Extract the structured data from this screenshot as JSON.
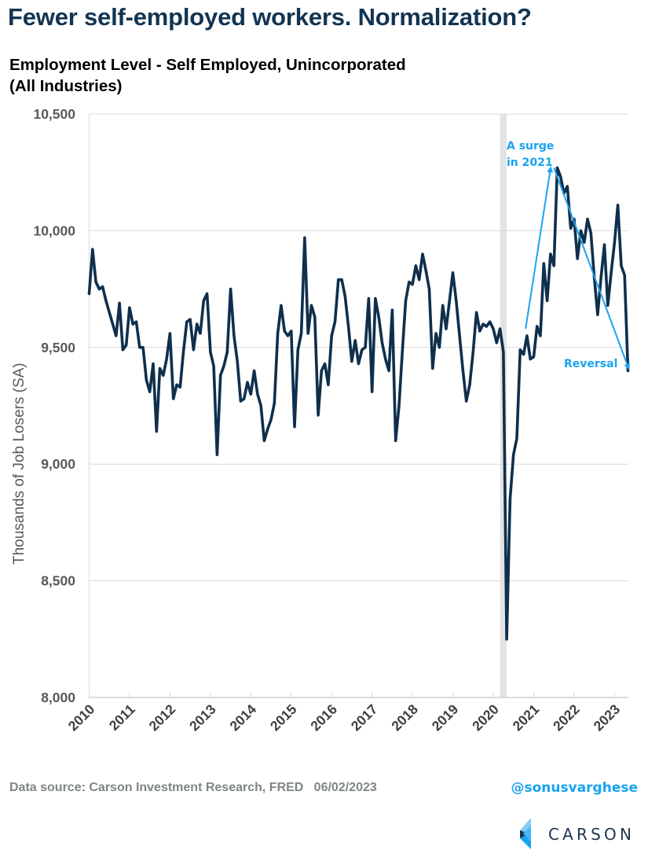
{
  "header": {
    "title": "Fewer self-employed workers. Normalization?",
    "subtitle_line1": "Employment Level - Self Employed, Unincorporated",
    "subtitle_line2": "(All Industries)"
  },
  "footer": {
    "source": "Data source: Carson Investment Research, FRED   06/02/2023",
    "handle": "@sonusvarghese",
    "logo_text": "CARSON"
  },
  "colors": {
    "line": "#0f2f4c",
    "annotation": "#1aa3f0",
    "recession": "#e3e3e3",
    "grid": "#d9d9d9",
    "title": "#123452"
  },
  "chart_data": {
    "type": "line",
    "title": "Employment Level - Self Employed, Unincorporated (All Industries)",
    "xlabel": "",
    "ylabel": "Thousands of Job Losers (SA)",
    "ylim": [
      8000,
      10500
    ],
    "yticks": [
      8000,
      8500,
      9000,
      9500,
      10000,
      10500
    ],
    "ytick_labels": [
      "8,000",
      "8,500",
      "9,000",
      "9,500",
      "10,000",
      "10,500"
    ],
    "xlim": [
      2010.0,
      2023.45
    ],
    "xticks": [
      2010,
      2011,
      2012,
      2013,
      2014,
      2015,
      2016,
      2017,
      2018,
      2019,
      2020,
      2021,
      2022,
      2023
    ],
    "xtick_labels": [
      "2010",
      "2011",
      "2012",
      "2013",
      "2014",
      "2015",
      "2016",
      "2017",
      "2018",
      "2019",
      "2020",
      "2021",
      "2022",
      "2023"
    ],
    "grid": "horizontal",
    "recession_shading": {
      "start": 2020.17,
      "end": 2020.33
    },
    "frequency": "monthly",
    "start": "2010-01",
    "series": [
      {
        "name": "Self Employed, Unincorporated",
        "values": [
          9730,
          9920,
          9780,
          9750,
          9760,
          9700,
          9650,
          9600,
          9550,
          9690,
          9490,
          9510,
          9670,
          9600,
          9610,
          9500,
          9500,
          9360,
          9310,
          9430,
          9140,
          9410,
          9380,
          9450,
          9560,
          9280,
          9340,
          9330,
          9480,
          9610,
          9620,
          9490,
          9600,
          9560,
          9700,
          9730,
          9480,
          9420,
          9040,
          9380,
          9420,
          9480,
          9750,
          9550,
          9440,
          9270,
          9280,
          9350,
          9300,
          9400,
          9300,
          9250,
          9100,
          9150,
          9190,
          9260,
          9560,
          9680,
          9570,
          9550,
          9570,
          9160,
          9490,
          9560,
          9970,
          9560,
          9680,
          9630,
          9210,
          9400,
          9430,
          9340,
          9550,
          9610,
          9790,
          9790,
          9720,
          9590,
          9440,
          9530,
          9430,
          9490,
          9500,
          9710,
          9310,
          9710,
          9630,
          9520,
          9450,
          9400,
          9660,
          9100,
          9250,
          9480,
          9700,
          9780,
          9770,
          9850,
          9790,
          9900,
          9830,
          9750,
          9410,
          9560,
          9500,
          9680,
          9580,
          9700,
          9820,
          9700,
          9550,
          9400,
          9270,
          9340,
          9480,
          9650,
          9570,
          9600,
          9590,
          9610,
          9580,
          9520,
          9580,
          9480,
          8250,
          8850,
          9040,
          9110,
          9490,
          9470,
          9550,
          9450,
          9460,
          9590,
          9550,
          9860,
          9700,
          9900,
          9850,
          10270,
          10230,
          10160,
          10190,
          10010,
          10050,
          9880,
          10000,
          9950,
          10050,
          9990,
          9800,
          9640,
          9800,
          9940,
          9680,
          9820,
          9950,
          10110,
          9850,
          9810,
          9400
        ]
      }
    ],
    "annotations": [
      {
        "text": "A surge in 2021",
        "type": "arrow",
        "from": [
          2020.8,
          9580
        ],
        "to": [
          2021.42,
          10270
        ]
      },
      {
        "text": "Reversal",
        "type": "arrow",
        "from": [
          2021.5,
          10270
        ],
        "to": [
          2023.35,
          9410
        ]
      }
    ]
  }
}
